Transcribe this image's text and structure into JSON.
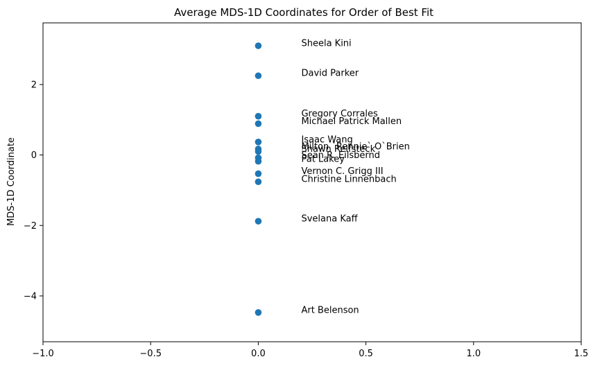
{
  "chart_data": {
    "type": "scatter",
    "title": "Average MDS-1D Coordinates for Order of Best Fit",
    "xlabel": "",
    "ylabel": "MDS-1D Coordinate",
    "xlim": [
      -1.0,
      1.5
    ],
    "ylim": [
      -5.3,
      3.75
    ],
    "grid": false,
    "legend": "none",
    "point_color": "#1f77b4",
    "x_ticks": [
      {
        "value": -1.0,
        "label": "−1.0"
      },
      {
        "value": -0.5,
        "label": "−0.5"
      },
      {
        "value": 0.0,
        "label": "0.0"
      },
      {
        "value": 0.5,
        "label": "0.5"
      },
      {
        "value": 1.0,
        "label": "1.0"
      },
      {
        "value": 1.5,
        "label": "1.5"
      }
    ],
    "y_ticks": [
      {
        "value": -4,
        "label": "−4"
      },
      {
        "value": -2,
        "label": "−2"
      },
      {
        "value": 0,
        "label": "0"
      },
      {
        "value": 2,
        "label": "2"
      }
    ],
    "points": [
      {
        "name": "Sheela Kini",
        "x": 0.0,
        "y": 3.1
      },
      {
        "name": "David Parker",
        "x": 0.0,
        "y": 2.25
      },
      {
        "name": "Gregory Corrales",
        "x": 0.0,
        "y": 1.1
      },
      {
        "name": "Michael Patrick Mallen",
        "x": 0.0,
        "y": 0.89
      },
      {
        "name": "Isaac Wang",
        "x": 0.0,
        "y": 0.37
      },
      {
        "name": "Milton `Rennie` O`Brien",
        "x": 0.0,
        "y": 0.17
      },
      {
        "name": "Shawn Reifsteck",
        "x": 0.0,
        "y": 0.1
      },
      {
        "name": "Sean R. Eilsbernd",
        "x": 0.0,
        "y": -0.08
      },
      {
        "name": "Pat Lakey",
        "x": 0.0,
        "y": -0.18
      },
      {
        "name": "Vernon C. Grigg III",
        "x": 0.0,
        "y": -0.53
      },
      {
        "name": "Christine Linnenbach",
        "x": 0.0,
        "y": -0.76
      },
      {
        "name": "Svelana Kaff",
        "x": 0.0,
        "y": -1.88
      },
      {
        "name": "Art Belenson",
        "x": 0.0,
        "y": -4.47
      }
    ]
  }
}
